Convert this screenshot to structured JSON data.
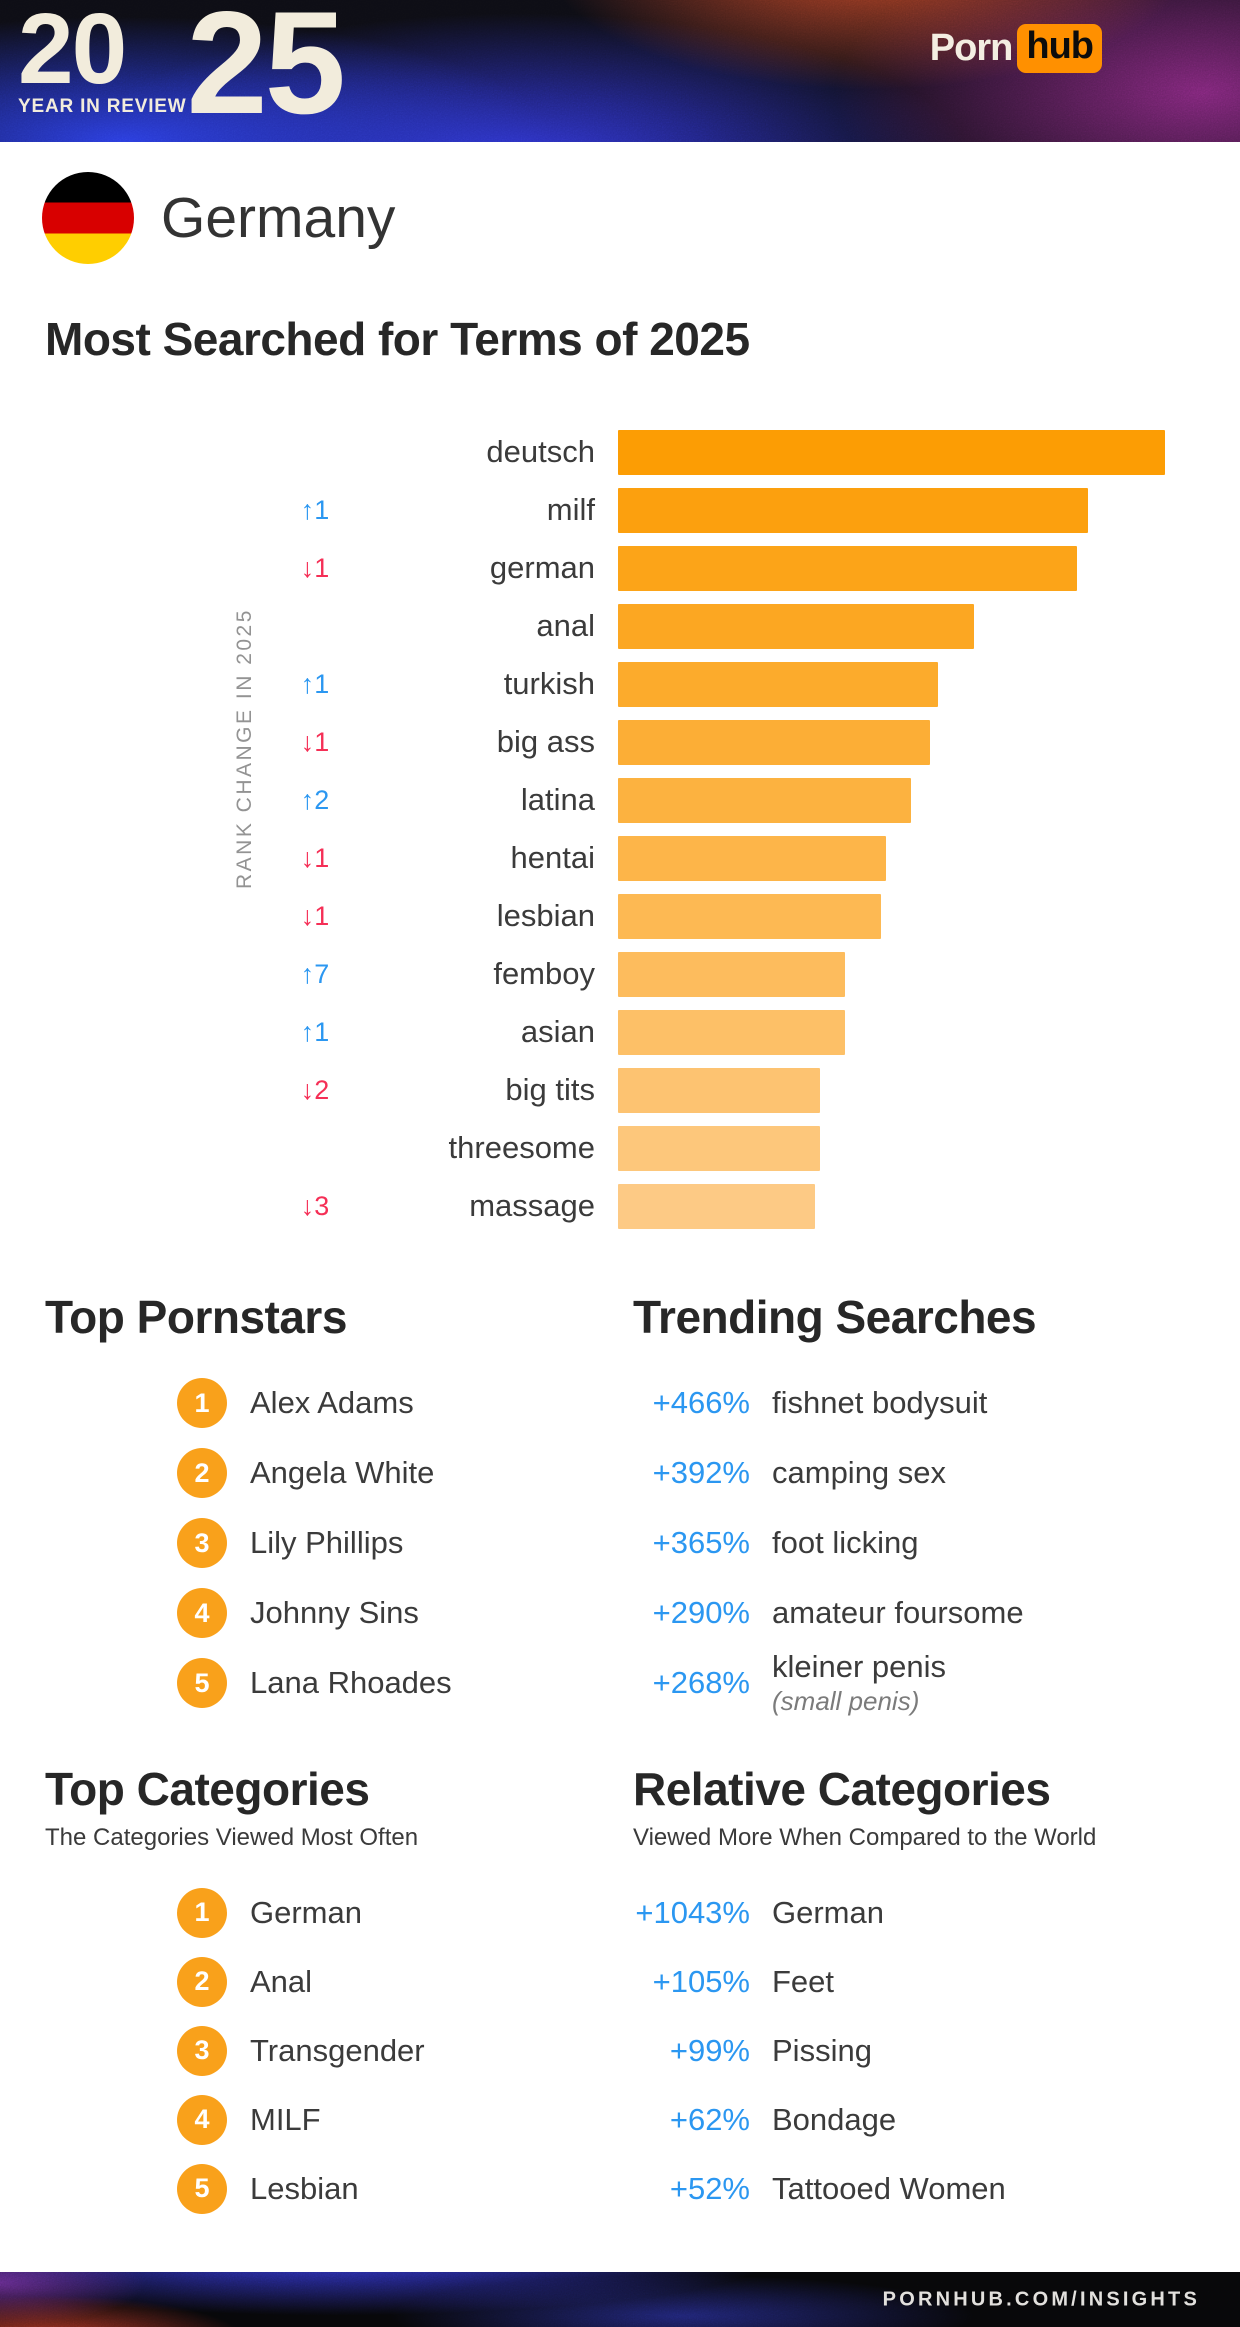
{
  "logo": {
    "prefix": "20",
    "suffix": "25",
    "tagline": "YEAR IN REVIEW"
  },
  "brand": {
    "part1": "Porn",
    "part2": "hub"
  },
  "country": {
    "name": "Germany",
    "flag_colors": [
      "#000000",
      "#D80000",
      "#FFCE00"
    ]
  },
  "page_title": "Most Searched for Terms of 2025",
  "chart_data": {
    "type": "bar",
    "orientation": "horizontal",
    "title": "Most Searched for Terms of 2025",
    "ylabel": "RANK CHANGE IN 2025",
    "value_unit": "relative search volume, top term = 100 (estimated from bar lengths)",
    "categories": [
      "deutsch",
      "milf",
      "german",
      "anal",
      "turkish",
      "big ass",
      "latina",
      "hentai",
      "lesbian",
      "femboy",
      "asian",
      "big tits",
      "threesome",
      "massage"
    ],
    "values": [
      100,
      86,
      84,
      65,
      58.5,
      57,
      53.5,
      49,
      48,
      41.5,
      41.5,
      37,
      37,
      36
    ],
    "rank_changes": [
      null,
      "+1",
      "-1",
      null,
      "+1",
      "-1",
      "+2",
      "-1",
      "-1",
      "+7",
      "+1",
      "-2",
      null,
      "-3"
    ],
    "bar_color_start": "#FC9D04",
    "bar_color_end": "#FDCA85",
    "rank_up_color": "#2B97F1",
    "rank_down_color": "#F52F56",
    "up_arrow": "↑",
    "down_arrow": "↓",
    "legend_position": "none",
    "grid": false
  },
  "top_pornstars": {
    "title": "Top Pornstars",
    "items": [
      {
        "rank": 1,
        "name": "Alex Adams"
      },
      {
        "rank": 2,
        "name": "Angela White"
      },
      {
        "rank": 3,
        "name": "Lily Phillips"
      },
      {
        "rank": 4,
        "name": "Johnny Sins"
      },
      {
        "rank": 5,
        "name": "Lana Rhoades"
      }
    ]
  },
  "trending_searches": {
    "title": "Trending Searches",
    "items": [
      {
        "change": "+466%",
        "term": "fishnet bodysuit"
      },
      {
        "change": "+392%",
        "term": "camping sex"
      },
      {
        "change": "+365%",
        "term": "foot licking"
      },
      {
        "change": "+290%",
        "term": "amateur foursome"
      },
      {
        "change": "+268%",
        "term": "kleiner penis",
        "note": "(small penis)"
      }
    ]
  },
  "top_categories": {
    "title": "Top Categories",
    "subtitle": "The Categories Viewed Most Often",
    "items": [
      {
        "rank": 1,
        "name": "German"
      },
      {
        "rank": 2,
        "name": "Anal"
      },
      {
        "rank": 3,
        "name": "Transgender"
      },
      {
        "rank": 4,
        "name": "MILF"
      },
      {
        "rank": 5,
        "name": "Lesbian"
      }
    ]
  },
  "relative_categories": {
    "title": "Relative Categories",
    "subtitle": "Viewed More When Compared to the World",
    "items": [
      {
        "change": "+1043%",
        "term": "German"
      },
      {
        "change": "+105%",
        "term": "Feet"
      },
      {
        "change": "+99%",
        "term": "Pissing"
      },
      {
        "change": "+62%",
        "term": "Bondage"
      },
      {
        "change": "+52%",
        "term": "Tattooed Women"
      }
    ]
  },
  "footer": {
    "site": "PORNHUB.COM/INSIGHTS"
  },
  "colors": {
    "accent_orange": "#F9A11B",
    "brand_orange": "#FF9000",
    "link_blue": "#2B97F1",
    "down_red": "#F52F56",
    "cream": "#F2ECDC",
    "text_dark": "#272727"
  }
}
